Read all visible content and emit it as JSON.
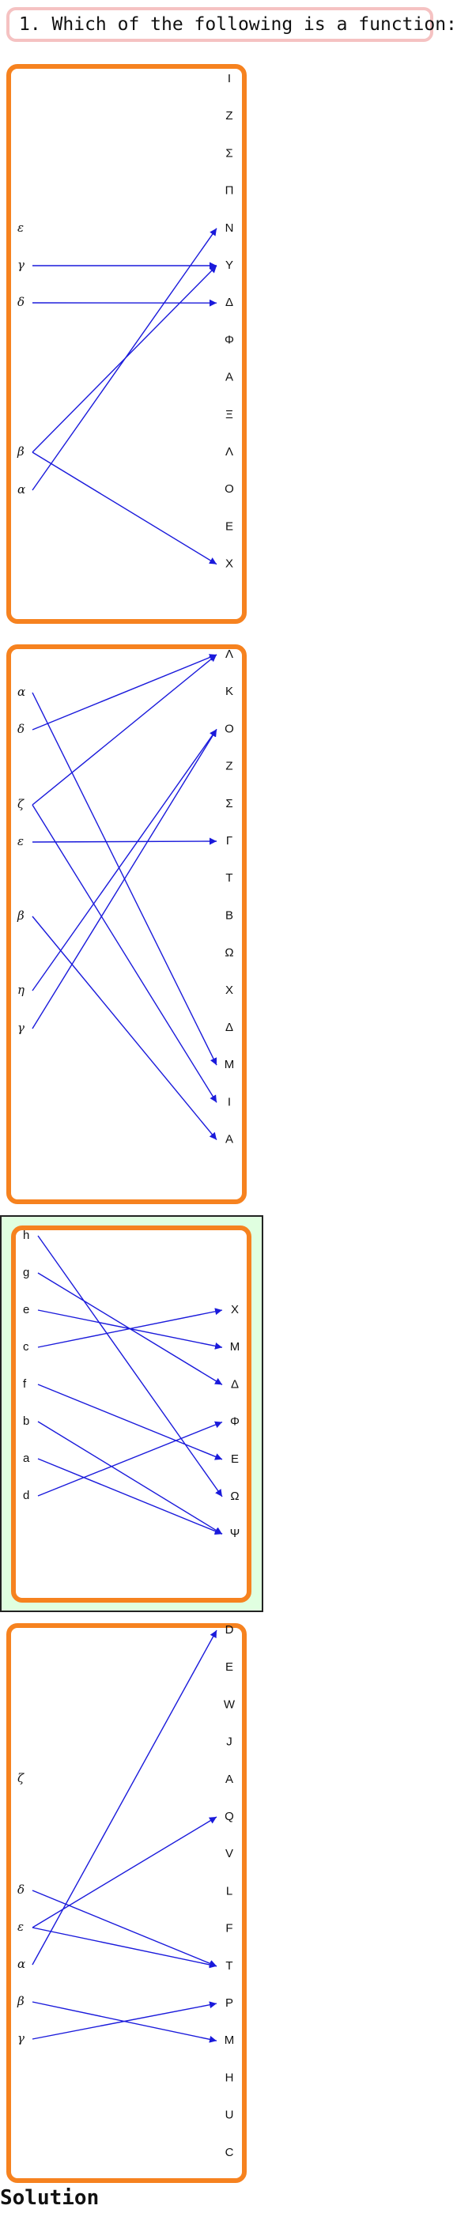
{
  "question": "1. Which of the following is a function:",
  "solution_label": "Solution",
  "colors": {
    "edge": "#1a1adb",
    "panel_border": "#f6821f",
    "solution_bg": "#e0ffe0",
    "question_border": "#f5c2c2"
  },
  "diagrams": [
    {
      "left": [
        "ε",
        "γ",
        "δ",
        "β",
        "α"
      ],
      "right": [
        "I",
        "Z",
        "Σ",
        "Π",
        "N",
        "Y",
        "Δ",
        "Φ",
        "A",
        "Ξ",
        "Λ",
        "O",
        "E",
        "X"
      ],
      "edges": [
        [
          "γ",
          "Y"
        ],
        [
          "δ",
          "Δ"
        ],
        [
          "β",
          "Y"
        ],
        [
          "β",
          "X"
        ],
        [
          "α",
          "N"
        ]
      ]
    },
    {
      "left": [
        "α",
        "δ",
        "ζ",
        "ε",
        "β",
        "η",
        "γ"
      ],
      "right": [
        "Λ",
        "K",
        "O",
        "Z",
        "Σ",
        "Γ",
        "T",
        "B",
        "Ω",
        "X",
        "Δ",
        "M",
        "I",
        "A"
      ],
      "edges": [
        [
          "α",
          "M"
        ],
        [
          "δ",
          "Λ"
        ],
        [
          "ζ",
          "Λ"
        ],
        [
          "ζ",
          "I"
        ],
        [
          "ε",
          "Γ"
        ],
        [
          "β",
          "A"
        ],
        [
          "η",
          "O"
        ],
        [
          "γ",
          "O"
        ]
      ]
    },
    {
      "solution": true,
      "left": [
        "h",
        "g",
        "e",
        "c",
        "f",
        "b",
        "a",
        "d"
      ],
      "right": [
        "X",
        "M",
        "Δ",
        "Φ",
        "E",
        "Ω",
        "Ψ"
      ],
      "edges": [
        [
          "h",
          "Ω"
        ],
        [
          "g",
          "Δ"
        ],
        [
          "e",
          "M"
        ],
        [
          "c",
          "X"
        ],
        [
          "f",
          "E"
        ],
        [
          "b",
          "Ψ"
        ],
        [
          "a",
          "Ψ"
        ],
        [
          "d",
          "Φ"
        ]
      ]
    },
    {
      "left": [
        "ζ",
        "δ",
        "ε",
        "α",
        "β",
        "γ"
      ],
      "right": [
        "D",
        "E",
        "W",
        "J",
        "A",
        "Q",
        "V",
        "L",
        "F",
        "T",
        "P",
        "M",
        "H",
        "U",
        "C"
      ],
      "edges": [
        [
          "δ",
          "T"
        ],
        [
          "ε",
          "Q"
        ],
        [
          "ε",
          "T"
        ],
        [
          "α",
          "D"
        ],
        [
          "β",
          "M"
        ],
        [
          "γ",
          "P"
        ]
      ]
    }
  ]
}
